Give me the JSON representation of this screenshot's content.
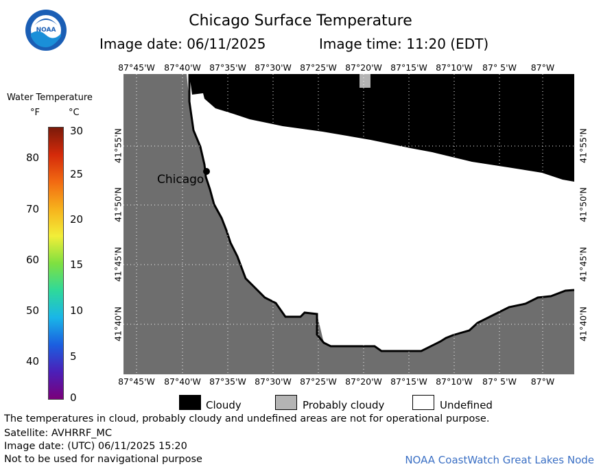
{
  "header": {
    "logo_text": "NOAA",
    "title": "Chicago Surface Temperature",
    "image_date_label": "Image date: 06/11/2025",
    "image_time_label": "Image time: 11:20 (EDT)"
  },
  "color_scale": {
    "title": "Water Temperature",
    "unit_f": "°F",
    "unit_c": "°C",
    "f_ticks": [
      "80",
      "70",
      "60",
      "50",
      "40"
    ],
    "c_ticks": [
      "30",
      "25",
      "20",
      "15",
      "10",
      "5",
      "0"
    ],
    "gradient_colors": [
      "#7a007a",
      "#4b1fb8",
      "#1b5fe0",
      "#19b6e8",
      "#2fd99a",
      "#7fe040",
      "#f2ee38",
      "#f7b21c",
      "#f26a12",
      "#d42a0a",
      "#7a1a0a"
    ]
  },
  "map": {
    "city_label": "Chicago",
    "lon_labels": [
      "87°45'W",
      "87°40'W",
      "87°35'W",
      "87°30'W",
      "87°25'W",
      "87°20'W",
      "87°15'W",
      "87°10'W",
      "87° 5'W",
      "87°W"
    ],
    "lat_labels": [
      "41°55'N",
      "41°50'N",
      "41°45'N",
      "41°40'N"
    ],
    "colors": {
      "land": "#6e6e6e",
      "cloudy": "#000000",
      "probably_cloudy": "#b4b4b4",
      "undefined": "#ffffff"
    }
  },
  "map_legend": {
    "cloudy": "Cloudy",
    "probably_cloudy": "Probably cloudy",
    "undefined": "Undefined"
  },
  "footer": {
    "disclaimer": "The temperatures in cloud, probably cloudy and undefined areas are not for operational purpose.",
    "satellite": "Satellite: AVHRRF_MC",
    "image_date_utc": "Image date: (UTC) 06/11/2025  15:20",
    "navigation_note": "Not to be used for navigational purpose",
    "credit": "NOAA CoastWatch Great Lakes Node"
  }
}
